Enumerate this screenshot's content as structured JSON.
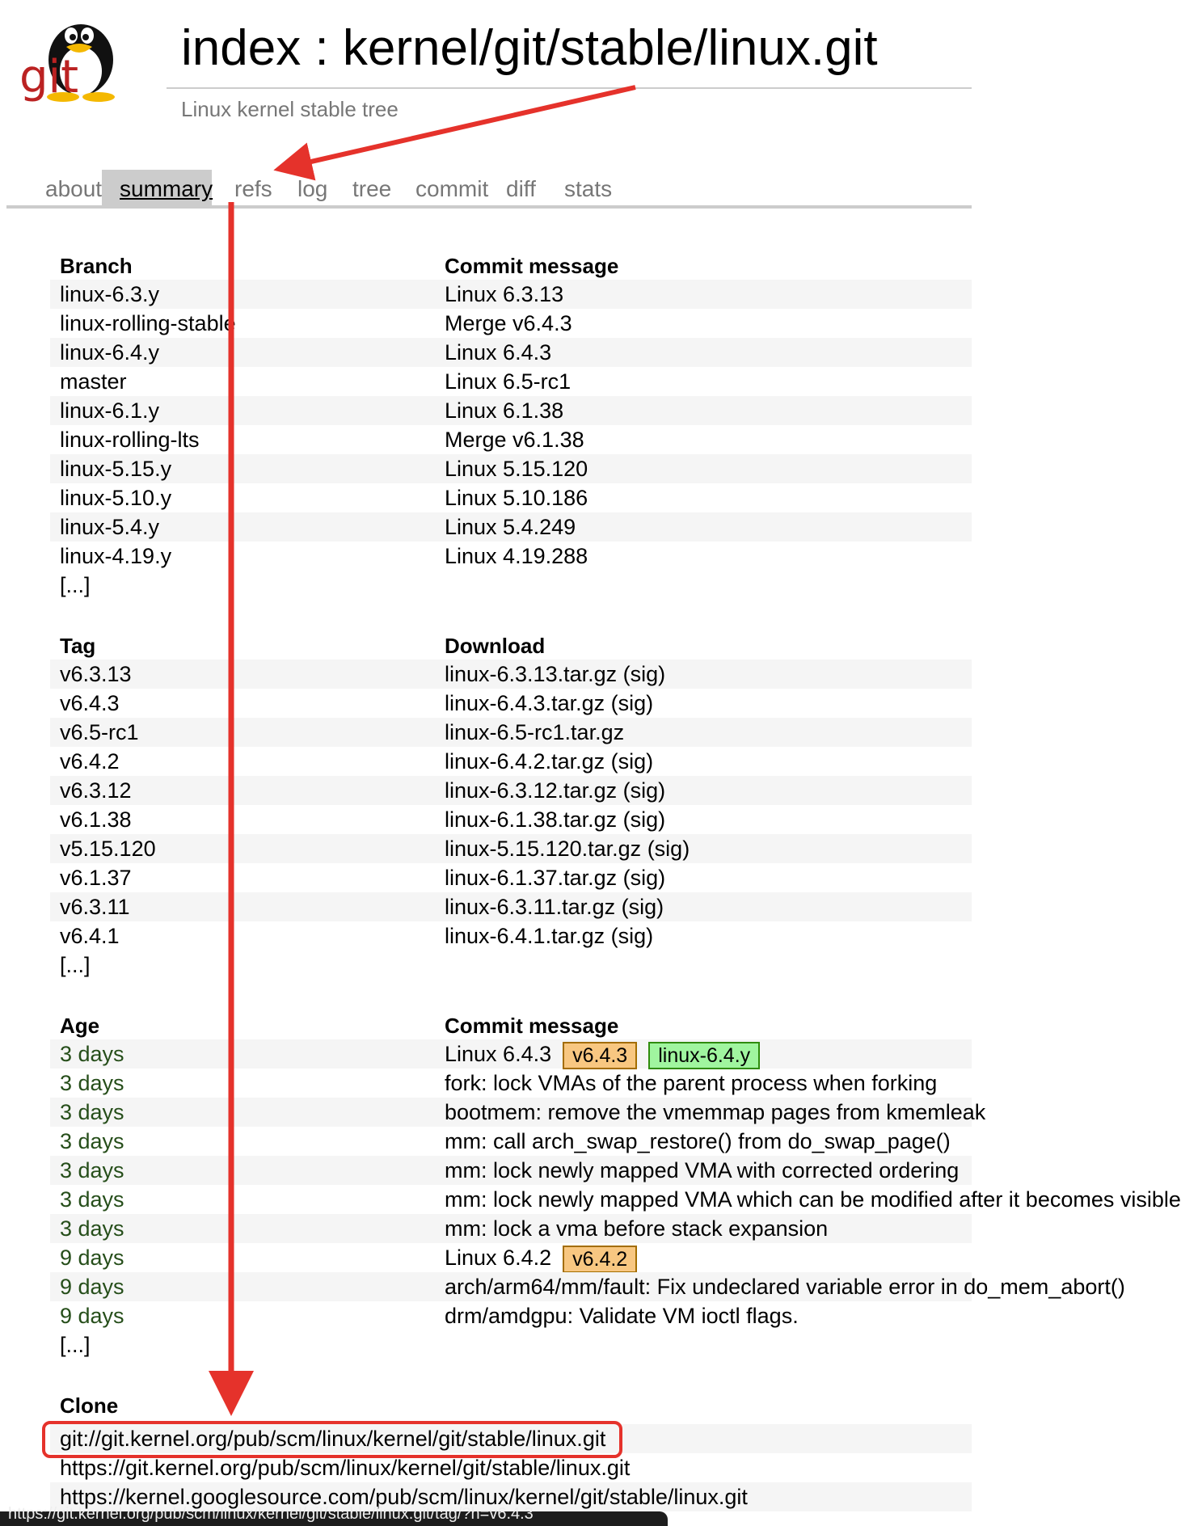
{
  "header": {
    "title": "index : kernel/git/stable/linux.git",
    "subtitle": "Linux kernel stable tree",
    "logo_text": "git"
  },
  "tabs": [
    {
      "label": "about",
      "active": false
    },
    {
      "label": "summary",
      "active": true
    },
    {
      "label": "refs",
      "active": false
    },
    {
      "label": "log",
      "active": false
    },
    {
      "label": "tree",
      "active": false
    },
    {
      "label": "commit",
      "active": false
    },
    {
      "label": "diff",
      "active": false
    },
    {
      "label": "stats",
      "active": false
    }
  ],
  "branches": {
    "headers": {
      "col1": "Branch",
      "col2": "Commit message"
    },
    "rows": [
      {
        "branch": "linux-6.3.y",
        "message": "Linux 6.3.13"
      },
      {
        "branch": "linux-rolling-stable",
        "message": "Merge v6.4.3"
      },
      {
        "branch": "linux-6.4.y",
        "message": "Linux 6.4.3"
      },
      {
        "branch": "master",
        "message": "Linux 6.5-rc1"
      },
      {
        "branch": "linux-6.1.y",
        "message": "Linux 6.1.38"
      },
      {
        "branch": "linux-rolling-lts",
        "message": "Merge v6.1.38"
      },
      {
        "branch": "linux-5.15.y",
        "message": "Linux 5.15.120"
      },
      {
        "branch": "linux-5.10.y",
        "message": "Linux 5.10.186"
      },
      {
        "branch": "linux-5.4.y",
        "message": "Linux 5.4.249"
      },
      {
        "branch": "linux-4.19.y",
        "message": "Linux 4.19.288"
      }
    ],
    "more": "[...]"
  },
  "tags": {
    "headers": {
      "col1": "Tag",
      "col2": "Download"
    },
    "rows": [
      {
        "tag": "v6.3.13",
        "download": "linux-6.3.13.tar.gz",
        "sig": "(sig)"
      },
      {
        "tag": "v6.4.3",
        "download": "linux-6.4.3.tar.gz",
        "sig": "(sig)"
      },
      {
        "tag": "v6.5-rc1",
        "download": "linux-6.5-rc1.tar.gz",
        "sig": ""
      },
      {
        "tag": "v6.4.2",
        "download": "linux-6.4.2.tar.gz",
        "sig": "(sig)"
      },
      {
        "tag": "v6.3.12",
        "download": "linux-6.3.12.tar.gz",
        "sig": "(sig)"
      },
      {
        "tag": "v6.1.38",
        "download": "linux-6.1.38.tar.gz",
        "sig": "(sig)"
      },
      {
        "tag": "v5.15.120",
        "download": "linux-5.15.120.tar.gz",
        "sig": "(sig)"
      },
      {
        "tag": "v6.1.37",
        "download": "linux-6.1.37.tar.gz",
        "sig": "(sig)"
      },
      {
        "tag": "v6.3.11",
        "download": "linux-6.3.11.tar.gz",
        "sig": "(sig)"
      },
      {
        "tag": "v6.4.1",
        "download": "linux-6.4.1.tar.gz",
        "sig": "(sig)"
      }
    ],
    "more": "[...]"
  },
  "commits": {
    "headers": {
      "col1": "Age",
      "col2": "Commit message"
    },
    "rows": [
      {
        "age": "3 days",
        "message": "Linux 6.4.3",
        "tag_badge": "v6.4.3",
        "branch_badge": "linux-6.4.y"
      },
      {
        "age": "3 days",
        "message": "fork: lock VMAs of the parent process when forking",
        "tag_badge": "",
        "branch_badge": ""
      },
      {
        "age": "3 days",
        "message": "bootmem: remove the vmemmap pages from kmemleak",
        "tag_badge": "",
        "branch_badge": ""
      },
      {
        "age": "3 days",
        "message": "mm: call arch_swap_restore() from do_swap_page()",
        "tag_badge": "",
        "branch_badge": ""
      },
      {
        "age": "3 days",
        "message": "mm: lock newly mapped VMA with corrected ordering",
        "tag_badge": "",
        "branch_badge": ""
      },
      {
        "age": "3 days",
        "message": "mm: lock newly mapped VMA which can be modified after it becomes visible",
        "tag_badge": "",
        "branch_badge": ""
      },
      {
        "age": "3 days",
        "message": "mm: lock a vma before stack expansion",
        "tag_badge": "",
        "branch_badge": ""
      },
      {
        "age": "9 days",
        "message": "Linux 6.4.2",
        "tag_badge": "v6.4.2",
        "branch_badge": ""
      },
      {
        "age": "9 days",
        "message": "arch/arm64/mm/fault: Fix undeclared variable error in do_mem_abort()",
        "tag_badge": "",
        "branch_badge": ""
      },
      {
        "age": "9 days",
        "message": "drm/amdgpu: Validate VM ioctl flags.",
        "tag_badge": "",
        "branch_badge": ""
      }
    ],
    "more": "[...]"
  },
  "clone": {
    "header": "Clone",
    "urls": [
      "git://git.kernel.org/pub/scm/linux/kernel/git/stable/linux.git",
      "https://git.kernel.org/pub/scm/linux/kernel/git/stable/linux.git",
      "https://kernel.googlesource.com/pub/scm/linux/kernel/git/stable/linux.git"
    ]
  },
  "status_bar": {
    "url": "https://git.kernel.org/pub/scm/linux/kernel/git/stable/linux.git/tag/?h=v6.4.3"
  },
  "colors": {
    "age_green": "#264e1a",
    "tag_badge_bg": "#f8c781",
    "branch_badge_bg": "#a0f59f",
    "annotation_red": "#e5322b",
    "tab_active_bg": "#cccccc"
  }
}
